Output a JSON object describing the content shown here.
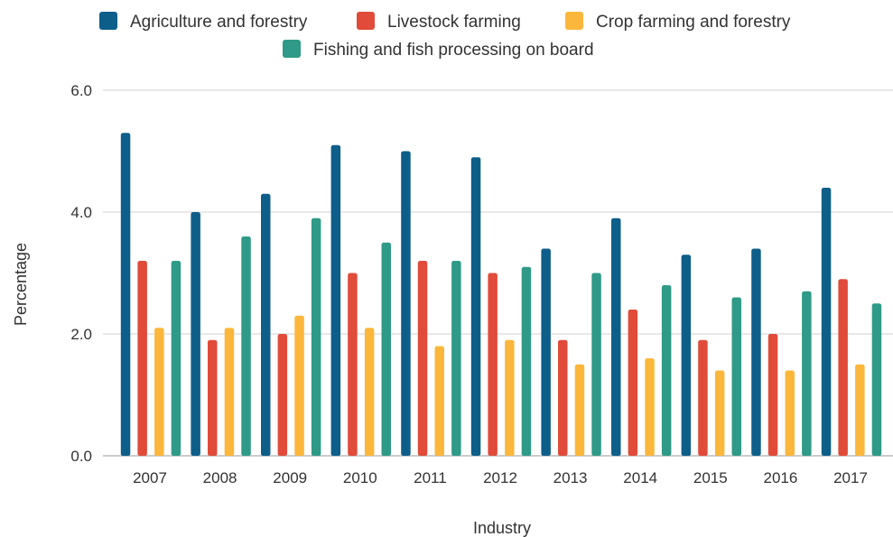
{
  "chart_data": {
    "type": "bar",
    "title": "",
    "xlabel": "Industry",
    "ylabel": "Percentage",
    "categories": [
      "2007",
      "2008",
      "2009",
      "2010",
      "2011",
      "2012",
      "2013",
      "2014",
      "2015",
      "2016",
      "2017"
    ],
    "series": [
      {
        "name": "Agriculture and forestry",
        "color": "#0e5e8a",
        "values": [
          5.3,
          4.0,
          4.3,
          5.1,
          5.0,
          4.9,
          3.4,
          3.9,
          3.3,
          3.4,
          4.4
        ]
      },
      {
        "name": "Livestock farming",
        "color": "#e04b3a",
        "values": [
          3.2,
          1.9,
          2.0,
          3.0,
          3.2,
          3.0,
          1.9,
          2.4,
          1.9,
          2.0,
          2.9
        ]
      },
      {
        "name": "Crop farming and forestry",
        "color": "#fbb73c",
        "values": [
          2.1,
          2.1,
          2.3,
          2.1,
          1.8,
          1.9,
          1.5,
          1.6,
          1.4,
          1.4,
          1.5
        ]
      },
      {
        "name": "Fishing and fish processing on board",
        "color": "#2e9a87",
        "values": [
          3.2,
          3.6,
          3.9,
          3.5,
          3.2,
          3.1,
          3.0,
          2.8,
          2.6,
          2.7,
          2.5
        ]
      }
    ],
    "ylim": [
      0,
      6
    ],
    "yticks": [
      "0.0",
      "2.0",
      "4.0",
      "6.0"
    ],
    "grid": true,
    "legend_position": "top"
  }
}
